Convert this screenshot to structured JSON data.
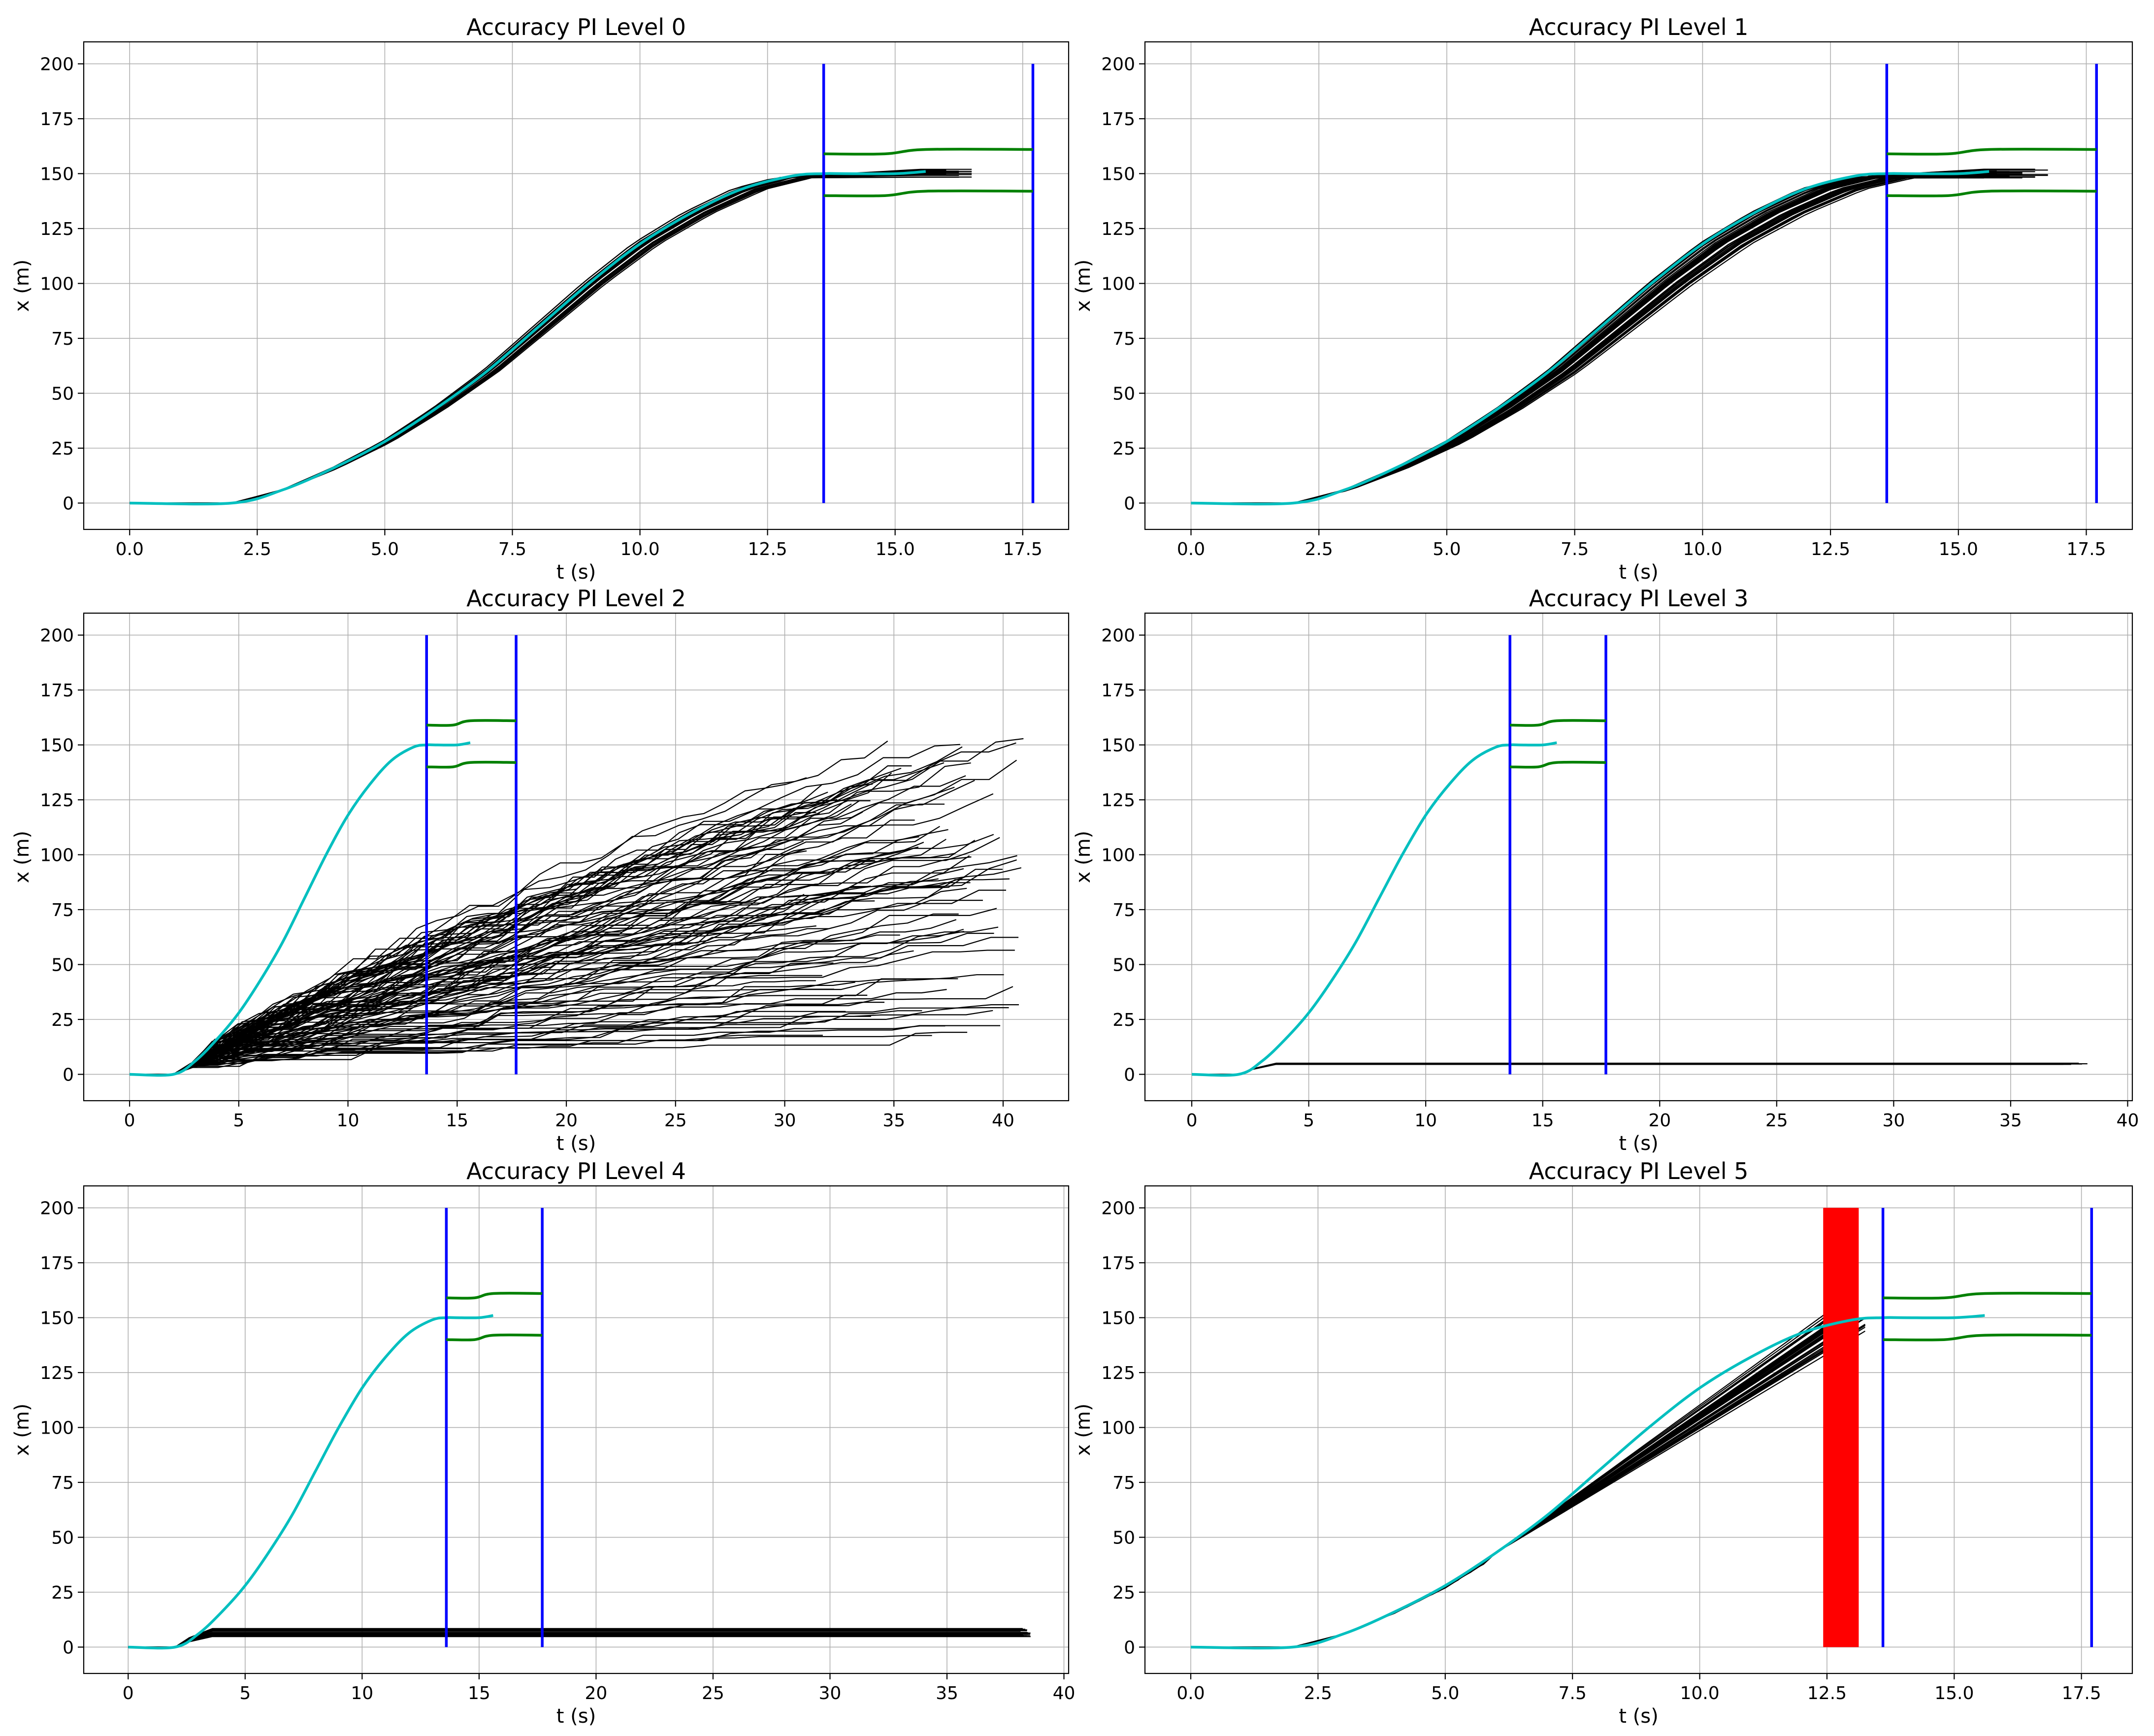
{
  "figure": {
    "layout": "3 rows x 2 columns",
    "background": "#ffffff"
  },
  "colors": {
    "reference": "#00bfbf",
    "samples": "#000000",
    "time_window": "#0000ff",
    "bounds": "#008000",
    "failures": "#ff0000",
    "grid": "#b0b0b0"
  },
  "chart_data": [
    {
      "type": "line",
      "title": "Accuracy PI Level 0",
      "xlabel": "t (s)",
      "ylabel": "x (m)",
      "xlim": [
        -0.9,
        18.4
      ],
      "ylim": [
        -12,
        210
      ],
      "xticks": [
        0,
        2.5,
        5,
        7.5,
        10,
        12.5,
        15,
        17.5
      ],
      "xtick_labels": [
        "0.0",
        "2.5",
        "5.0",
        "7.5",
        "10.0",
        "12.5",
        "15.0",
        "17.5"
      ],
      "yticks": [
        0,
        25,
        50,
        75,
        100,
        125,
        150,
        175,
        200
      ],
      "ytick_labels": [
        "0",
        "25",
        "50",
        "75",
        "100",
        "125",
        "150",
        "175",
        "200"
      ],
      "grid": true,
      "reference": {
        "name": "reference",
        "x": [
          0,
          2,
          3,
          4,
          5,
          6,
          7,
          8,
          9,
          10,
          11,
          12,
          13,
          13.6,
          14,
          15,
          15.6
        ],
        "y": [
          0,
          0,
          6,
          16,
          28,
          43,
          60,
          80,
          100,
          118,
          132,
          143,
          149,
          150,
          150,
          150,
          151
        ]
      },
      "samples": {
        "name": "simulated trajectories",
        "count": 30,
        "end_time": [
          15.6,
          16.6
        ],
        "time_scale": [
          0.98,
          1.05
        ],
        "final_value": [
          148,
          152
        ]
      },
      "vertical_lines": [
        13.6,
        17.7
      ],
      "bounds": {
        "upper": {
          "x": [
            13.6,
            14.8,
            15.6,
            17.7
          ],
          "y": [
            159,
            159,
            161,
            161
          ]
        },
        "lower": {
          "x": [
            13.6,
            14.8,
            15.6,
            17.7
          ],
          "y": [
            140,
            140,
            142,
            142
          ]
        }
      }
    },
    {
      "type": "line",
      "title": "Accuracy PI Level 1",
      "xlabel": "t (s)",
      "ylabel": "x (m)",
      "xlim": [
        -0.9,
        18.4
      ],
      "ylim": [
        -12,
        210
      ],
      "xticks": [
        0,
        2.5,
        5,
        7.5,
        10,
        12.5,
        15,
        17.5
      ],
      "xtick_labels": [
        "0.0",
        "2.5",
        "5.0",
        "7.5",
        "10.0",
        "12.5",
        "15.0",
        "17.5"
      ],
      "yticks": [
        0,
        25,
        50,
        75,
        100,
        125,
        150,
        175,
        200
      ],
      "ytick_labels": [
        "0",
        "25",
        "50",
        "75",
        "100",
        "125",
        "150",
        "175",
        "200"
      ],
      "grid": true,
      "reference": {
        "name": "reference",
        "x": [
          0,
          2,
          3,
          4,
          5,
          6,
          7,
          8,
          9,
          10,
          11,
          12,
          13,
          13.6,
          14,
          15,
          15.6
        ],
        "y": [
          0,
          0,
          6,
          16,
          28,
          43,
          60,
          80,
          100,
          118,
          132,
          143,
          149,
          150,
          150,
          150,
          151
        ]
      },
      "samples": {
        "name": "simulated trajectories",
        "count": 40,
        "end_time": [
          15.4,
          16.9
        ],
        "time_scale": [
          0.99,
          1.12
        ],
        "final_value": [
          148,
          152
        ]
      },
      "vertical_lines": [
        13.6,
        17.7
      ],
      "bounds": {
        "upper": {
          "x": [
            13.6,
            14.8,
            15.6,
            17.7
          ],
          "y": [
            159,
            159,
            161,
            161
          ]
        },
        "lower": {
          "x": [
            13.6,
            14.8,
            15.6,
            17.7
          ],
          "y": [
            140,
            140,
            142,
            142
          ]
        }
      }
    },
    {
      "type": "line",
      "title": "Accuracy PI Level 2",
      "xlabel": "t (s)",
      "ylabel": "x (m)",
      "xlim": [
        -2.1,
        43.0
      ],
      "ylim": [
        -12,
        210
      ],
      "xticks": [
        0,
        5,
        10,
        15,
        20,
        25,
        30,
        35,
        40
      ],
      "xtick_labels": [
        "0",
        "5",
        "10",
        "15",
        "20",
        "25",
        "30",
        "35",
        "40"
      ],
      "yticks": [
        0,
        25,
        50,
        75,
        100,
        125,
        150,
        175,
        200
      ],
      "ytick_labels": [
        "0",
        "25",
        "50",
        "75",
        "100",
        "125",
        "150",
        "175",
        "200"
      ],
      "grid": true,
      "reference": {
        "name": "reference",
        "x": [
          0,
          2,
          3,
          4,
          5,
          6,
          7,
          8,
          9,
          10,
          11,
          12,
          13,
          13.6,
          14,
          15,
          15.6
        ],
        "y": [
          0,
          0,
          6,
          16,
          28,
          43,
          60,
          80,
          100,
          118,
          132,
          143,
          149,
          150,
          150,
          150,
          151
        ]
      },
      "samples": {
        "name": "simulated trajectories",
        "count": 100,
        "start": [
          2.8,
          5
        ],
        "end_time": [
          30.8,
          41
        ],
        "final_value": [
          10,
          153
        ]
      },
      "vertical_lines": [
        13.6,
        17.7
      ],
      "bounds": {
        "upper": {
          "x": [
            13.6,
            14.8,
            15.6,
            17.7
          ],
          "y": [
            159,
            159,
            161,
            161
          ]
        },
        "lower": {
          "x": [
            13.6,
            14.8,
            15.6,
            17.7
          ],
          "y": [
            140,
            140,
            142,
            142
          ]
        }
      }
    },
    {
      "type": "line",
      "title": "Accuracy PI Level 3",
      "xlabel": "t (s)",
      "ylabel": "x (m)",
      "xlim": [
        -2.0,
        40.2
      ],
      "ylim": [
        -12,
        210
      ],
      "xticks": [
        0,
        5,
        10,
        15,
        20,
        25,
        30,
        35,
        40
      ],
      "xtick_labels": [
        "0",
        "5",
        "10",
        "15",
        "20",
        "25",
        "30",
        "35",
        "40"
      ],
      "yticks": [
        0,
        25,
        50,
        75,
        100,
        125,
        150,
        175,
        200
      ],
      "ytick_labels": [
        "0",
        "25",
        "50",
        "75",
        "100",
        "125",
        "150",
        "175",
        "200"
      ],
      "grid": true,
      "reference": {
        "name": "reference",
        "x": [
          0,
          2,
          3,
          4,
          5,
          6,
          7,
          8,
          9,
          10,
          11,
          12,
          13,
          13.6,
          14,
          15,
          15.6
        ],
        "y": [
          0,
          0,
          6,
          16,
          28,
          43,
          60,
          80,
          100,
          118,
          132,
          143,
          149,
          150,
          150,
          150,
          151
        ]
      },
      "samples": {
        "name": "simulated trajectories",
        "count": 12,
        "plateau": [
          4.4,
          5.2
        ],
        "end_time": [
          36.8,
          38.3
        ]
      },
      "vertical_lines": [
        13.6,
        17.7
      ],
      "bounds": {
        "upper": {
          "x": [
            13.6,
            14.8,
            15.6,
            17.7
          ],
          "y": [
            159,
            159,
            161,
            161
          ]
        },
        "lower": {
          "x": [
            13.6,
            14.8,
            15.6,
            17.7
          ],
          "y": [
            140,
            140,
            142,
            142
          ]
        }
      }
    },
    {
      "type": "line",
      "title": "Accuracy PI Level 4",
      "xlabel": "t (s)",
      "ylabel": "x (m)",
      "xlim": [
        -1.9,
        40.2
      ],
      "ylim": [
        -12,
        210
      ],
      "xticks": [
        0,
        5,
        10,
        15,
        20,
        25,
        30,
        35,
        40
      ],
      "xtick_labels": [
        "0",
        "5",
        "10",
        "15",
        "20",
        "25",
        "30",
        "35",
        "40"
      ],
      "yticks": [
        0,
        25,
        50,
        75,
        100,
        125,
        150,
        175,
        200
      ],
      "ytick_labels": [
        "0",
        "25",
        "50",
        "75",
        "100",
        "125",
        "150",
        "175",
        "200"
      ],
      "grid": true,
      "reference": {
        "name": "reference",
        "x": [
          0,
          2,
          3,
          4,
          5,
          6,
          7,
          8,
          9,
          10,
          11,
          12,
          13,
          13.6,
          14,
          15,
          15.6
        ],
        "y": [
          0,
          0,
          6,
          16,
          28,
          43,
          60,
          80,
          100,
          118,
          132,
          143,
          149,
          150,
          150,
          150,
          151
        ]
      },
      "samples": {
        "name": "simulated trajectories",
        "count": 30,
        "plateau": [
          4.8,
          8.6
        ],
        "end_time": [
          38,
          38.6
        ]
      },
      "vertical_lines": [
        13.6,
        17.7
      ],
      "bounds": {
        "upper": {
          "x": [
            13.6,
            14.8,
            15.6,
            17.7
          ],
          "y": [
            159,
            159,
            161,
            161
          ]
        },
        "lower": {
          "x": [
            13.6,
            14.8,
            15.6,
            17.7
          ],
          "y": [
            140,
            140,
            142,
            142
          ]
        }
      }
    },
    {
      "type": "line",
      "title": "Accuracy PI Level 5",
      "xlabel": "t (s)",
      "ylabel": "x (m)",
      "xlim": [
        -0.9,
        18.5
      ],
      "ylim": [
        -12,
        210
      ],
      "xticks": [
        0,
        2.5,
        5,
        7.5,
        10,
        12.5,
        15,
        17.5
      ],
      "xtick_labels": [
        "0.0",
        "2.5",
        "5.0",
        "7.5",
        "10.0",
        "12.5",
        "15.0",
        "17.5"
      ],
      "yticks": [
        0,
        25,
        50,
        75,
        100,
        125,
        150,
        175,
        200
      ],
      "ytick_labels": [
        "0",
        "25",
        "50",
        "75",
        "100",
        "125",
        "150",
        "175",
        "200"
      ],
      "grid": true,
      "reference": {
        "name": "reference",
        "x": [
          0,
          2,
          3,
          4,
          5,
          6,
          7,
          8,
          9,
          10,
          11,
          12,
          13,
          13.6,
          14,
          15,
          15.6
        ],
        "y": [
          0,
          0,
          6,
          16,
          28,
          43,
          60,
          80,
          100,
          118,
          132,
          143,
          149,
          150,
          150,
          150,
          151
        ]
      },
      "samples": {
        "name": "simulated trajectories",
        "count": 40,
        "end_time": [
          12.5,
          13.4
        ],
        "final_value": [
          144,
          155
        ]
      },
      "failure_lines": {
        "name": "failure markers",
        "x_range": [
          12.45,
          13.1
        ],
        "count": 34,
        "ymax": 200
      },
      "vertical_lines": [
        13.6,
        17.7
      ],
      "bounds": {
        "upper": {
          "x": [
            13.6,
            14.8,
            15.6,
            17.7
          ],
          "y": [
            159,
            159,
            161,
            161
          ]
        },
        "lower": {
          "x": [
            13.6,
            14.8,
            15.6,
            17.7
          ],
          "y": [
            140,
            140,
            142,
            142
          ]
        }
      }
    }
  ]
}
